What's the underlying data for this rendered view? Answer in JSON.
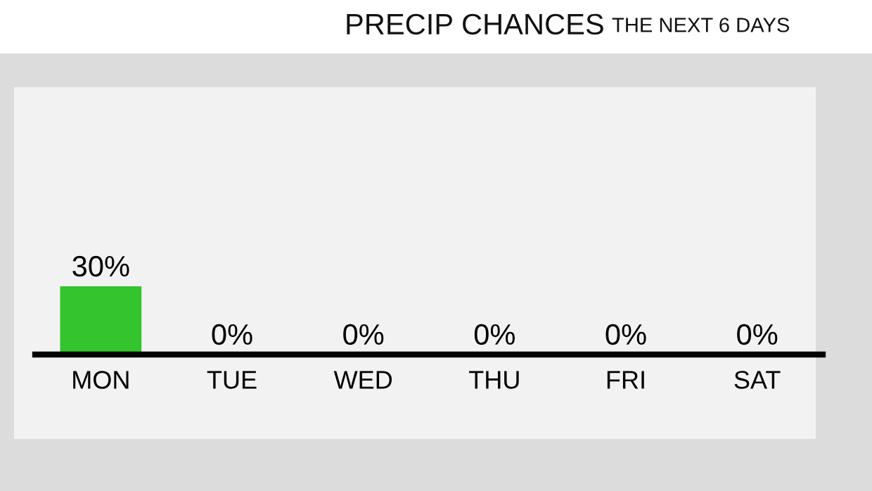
{
  "chart_data": {
    "type": "bar",
    "title": "PRECIP CHANCES",
    "subtitle": "THE NEXT 6 DAYS",
    "categories": [
      "MON",
      "TUE",
      "WED",
      "THU",
      "FRI",
      "SAT"
    ],
    "values": [
      30,
      0,
      0,
      0,
      0,
      0
    ],
    "value_labels": [
      "30%",
      "0%",
      "0%",
      "0%",
      "0%",
      "0%"
    ],
    "color": "#33c42e",
    "grid": false,
    "legend": false
  }
}
